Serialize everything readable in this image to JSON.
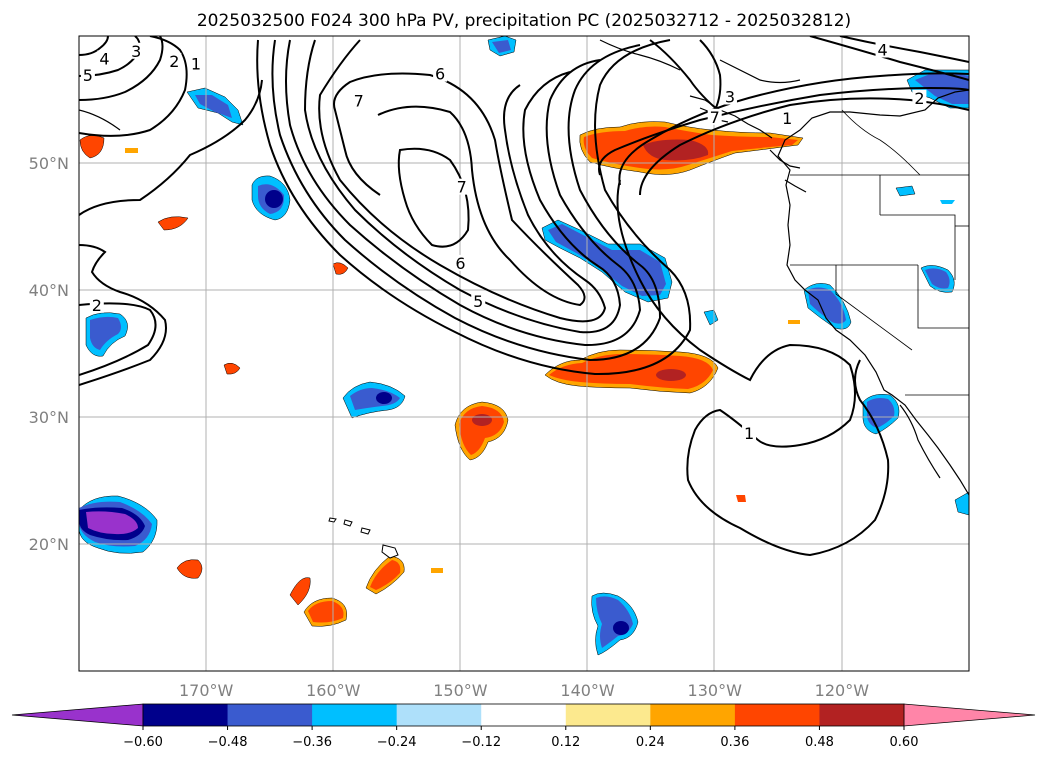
{
  "title": "2025032500 F024 300 hPa PV, precipitation PC (2025032712 - 2025032812)",
  "map": {
    "extent": {
      "lon_min": -180,
      "lon_max": -110,
      "lat_min": 10,
      "lat_max": 60
    },
    "lon_ticks": [
      {
        "lon": -170,
        "label": "170°W"
      },
      {
        "lon": -160,
        "label": "160°W"
      },
      {
        "lon": -150,
        "label": "150°W"
      },
      {
        "lon": -140,
        "label": "140°W"
      },
      {
        "lon": -130,
        "label": "130°W"
      },
      {
        "lon": -120,
        "label": "120°W"
      }
    ],
    "lat_ticks": [
      {
        "lat": 50,
        "label": "50°N"
      },
      {
        "lat": 40,
        "label": "40°N"
      },
      {
        "lat": 30,
        "label": "30°N"
      },
      {
        "lat": 20,
        "label": "20°N"
      }
    ],
    "contour_labels": [
      {
        "text": "5",
        "lon": -179.3,
        "lat": 56.7
      },
      {
        "text": "4",
        "lon": -178,
        "lat": 58
      },
      {
        "text": "3",
        "lon": -175.5,
        "lat": 58.6
      },
      {
        "text": "2",
        "lon": -172.5,
        "lat": 57.8
      },
      {
        "text": "1",
        "lon": -170.8,
        "lat": 57.6
      },
      {
        "text": "7",
        "lon": -158,
        "lat": 54.7
      },
      {
        "text": "6",
        "lon": -151.6,
        "lat": 56.8
      },
      {
        "text": "7",
        "lon": -149.9,
        "lat": 47.9
      },
      {
        "text": "6",
        "lon": -150,
        "lat": 41.9
      },
      {
        "text": "5",
        "lon": -148.6,
        "lat": 38.9
      },
      {
        "text": "3",
        "lon": -128.8,
        "lat": 55
      },
      {
        "text": "7",
        "lon": -130,
        "lat": 53.4
      },
      {
        "text": "1",
        "lon": -124.3,
        "lat": 53.3
      },
      {
        "text": "4",
        "lon": -116.8,
        "lat": 58.7
      },
      {
        "text": "2",
        "lon": -113.9,
        "lat": 54.9
      },
      {
        "text": "2",
        "lon": -178.6,
        "lat": 38.6
      },
      {
        "text": "1",
        "lon": -127.3,
        "lat": 28.5
      }
    ]
  },
  "colorbar": {
    "levels": [
      -0.6,
      -0.48,
      -0.36,
      -0.24,
      -0.12,
      0.12,
      0.24,
      0.36,
      0.48,
      0.6
    ],
    "tick_labels": [
      "−0.60",
      "−0.48",
      "−0.36",
      "−0.24",
      "−0.12",
      "0.12",
      "0.24",
      "0.36",
      "0.48",
      "0.60"
    ],
    "colors": [
      "#9932cc",
      "#00008b",
      "#3a5bcf",
      "#00bfff",
      "#aee0fa",
      "#ffffff",
      "#fce98e",
      "#ffa500",
      "#ff4500",
      "#b22222",
      "#ff85a8"
    ],
    "extend": "both"
  }
}
